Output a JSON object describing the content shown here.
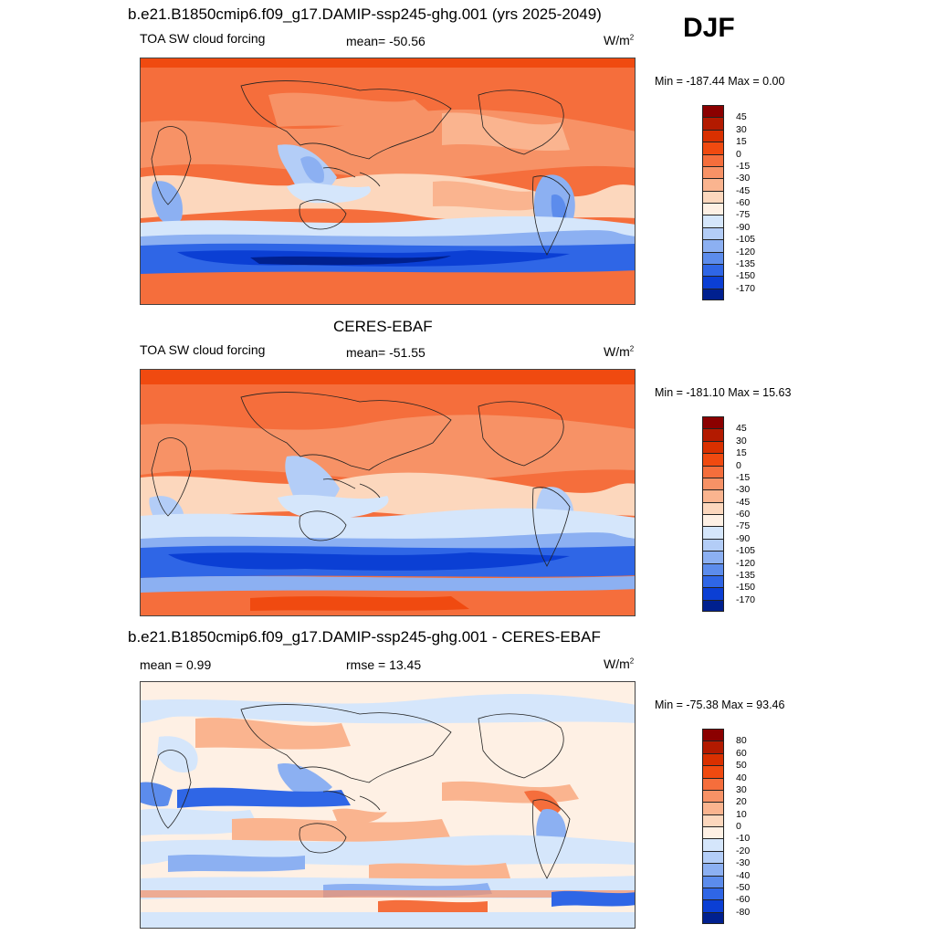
{
  "season": "DJF",
  "panels": [
    {
      "title": "b.e21.B1850cmip6.f09_g17.DAMIP-ssp245-ghg.001 (yrs 2025-2049)",
      "variable": "TOA SW cloud forcing",
      "stat_left": "",
      "stat_center": "mean= -50.56",
      "units": "W/m",
      "units_exp": "2",
      "minmax": "Min = -187.44 Max =   0.00",
      "colorbar_labels": [
        "45",
        "30",
        "15",
        "0",
        "-15",
        "-30",
        "-45",
        "-60",
        "-75",
        "-90",
        "-105",
        "-120",
        "-135",
        "-150",
        "-170"
      ]
    },
    {
      "title": "CERES-EBAF",
      "variable": "TOA SW cloud forcing",
      "stat_left": "",
      "stat_center": "mean= -51.55",
      "units": "W/m",
      "units_exp": "2",
      "minmax": "Min = -181.10 Max =  15.63",
      "colorbar_labels": [
        "45",
        "30",
        "15",
        "0",
        "-15",
        "-30",
        "-45",
        "-60",
        "-75",
        "-90",
        "-105",
        "-120",
        "-135",
        "-150",
        "-170"
      ]
    },
    {
      "title": "b.e21.B1850cmip6.f09_g17.DAMIP-ssp245-ghg.001 - CERES-EBAF",
      "variable": "",
      "stat_left": "mean =   0.99",
      "stat_center": "rmse =  13.45",
      "units": "W/m",
      "units_exp": "2",
      "minmax": "Min = -75.38 Max =  93.46",
      "colorbar_labels": [
        "80",
        "60",
        "50",
        "40",
        "30",
        "20",
        "10",
        "0",
        "-10",
        "-20",
        "-30",
        "-40",
        "-50",
        "-60",
        "-80"
      ]
    }
  ],
  "colors": {
    "abs_scale": [
      "#8b0000",
      "#b31a00",
      "#d93000",
      "#f04a10",
      "#f56e3c",
      "#f79266",
      "#fab48f",
      "#fcd7bd",
      "#fef0e4",
      "#d5e6fb",
      "#b3cdf7",
      "#8cb0f2",
      "#5c8cec",
      "#2f66e6",
      "#0b3fd4",
      "#00208f"
    ],
    "diff_scale": [
      "#8b0000",
      "#b31a00",
      "#d93000",
      "#f04a10",
      "#f56e3c",
      "#f79266",
      "#fab48f",
      "#fcd7bd",
      "#fef0e4",
      "#d5e6fb",
      "#b3cdf7",
      "#8cb0f2",
      "#5c8cec",
      "#2f66e6",
      "#0b3fd4",
      "#00208f"
    ]
  }
}
